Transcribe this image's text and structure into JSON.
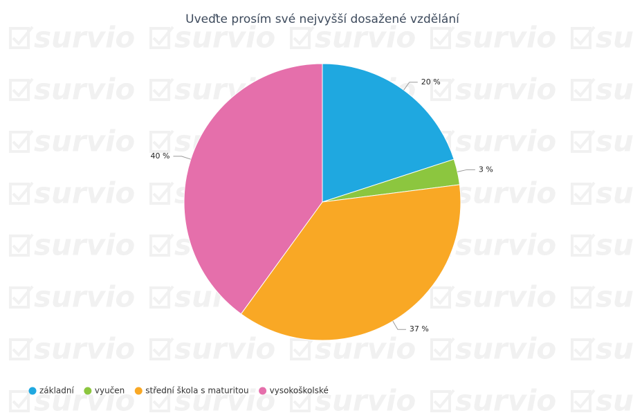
{
  "watermark": "survio",
  "chart_data": {
    "type": "pie",
    "title": "Uveďte prosím své nejvyšší dosažené vzdělání",
    "categories": [
      "základní",
      "vyučen",
      "střední škola s maturitou",
      "vysokoškolské"
    ],
    "values": [
      20,
      3,
      37,
      40
    ],
    "value_labels": [
      "20 %",
      "3 %",
      "37 %",
      "40 %"
    ],
    "colors": [
      "#1fa8e0",
      "#8cc63f",
      "#f9a825",
      "#e56fab"
    ],
    "legend": "bottom-left"
  }
}
